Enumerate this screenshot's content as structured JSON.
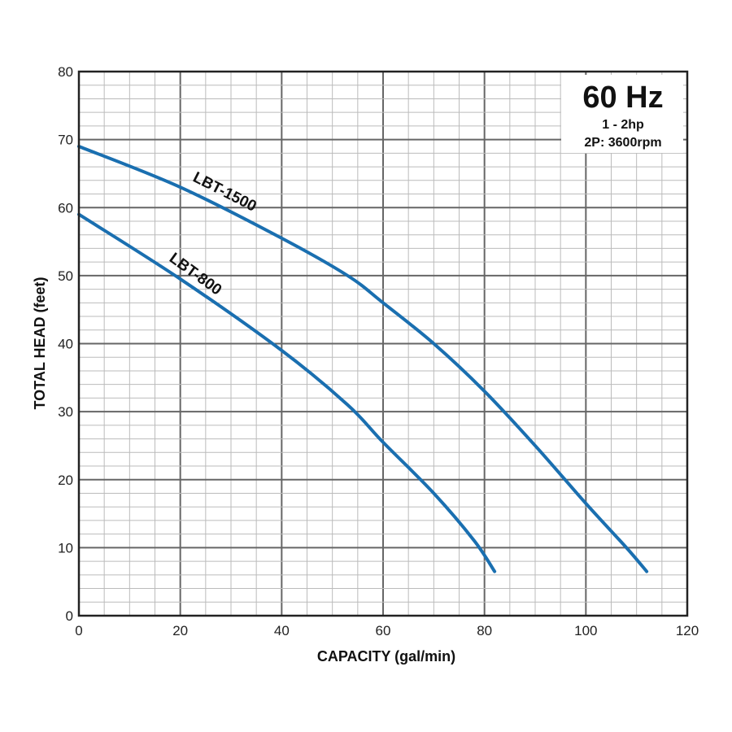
{
  "chart_data": {
    "type": "line",
    "xlabel": "CAPACITY (gal/min)",
    "ylabel": "TOTAL HEAD (feet)",
    "xlim": [
      0,
      120
    ],
    "ylim": [
      0,
      80
    ],
    "xticks": [
      0,
      20,
      40,
      60,
      80,
      100,
      120
    ],
    "yticks": [
      0,
      10,
      20,
      30,
      40,
      50,
      60,
      70,
      80
    ],
    "grid": true,
    "annotation": {
      "title": "60 Hz",
      "line1": "1 - 2hp",
      "line2": "2P: 3600rpm",
      "placement": "top-right"
    },
    "series": [
      {
        "name": "LBT-1500",
        "color": "#1a6fb0",
        "x": [
          0,
          20,
          40,
          53,
          60,
          70,
          80,
          90,
          100,
          108,
          112
        ],
        "y": [
          69,
          63,
          55.5,
          50,
          46,
          40,
          33,
          25,
          16.5,
          10,
          6.5
        ]
      },
      {
        "name": "LBT-800",
        "color": "#1a6fb0",
        "x": [
          0,
          20,
          40,
          53,
          60,
          70,
          78,
          82
        ],
        "y": [
          59,
          49.5,
          39,
          31,
          25.5,
          18,
          11,
          6.5
        ]
      }
    ]
  }
}
